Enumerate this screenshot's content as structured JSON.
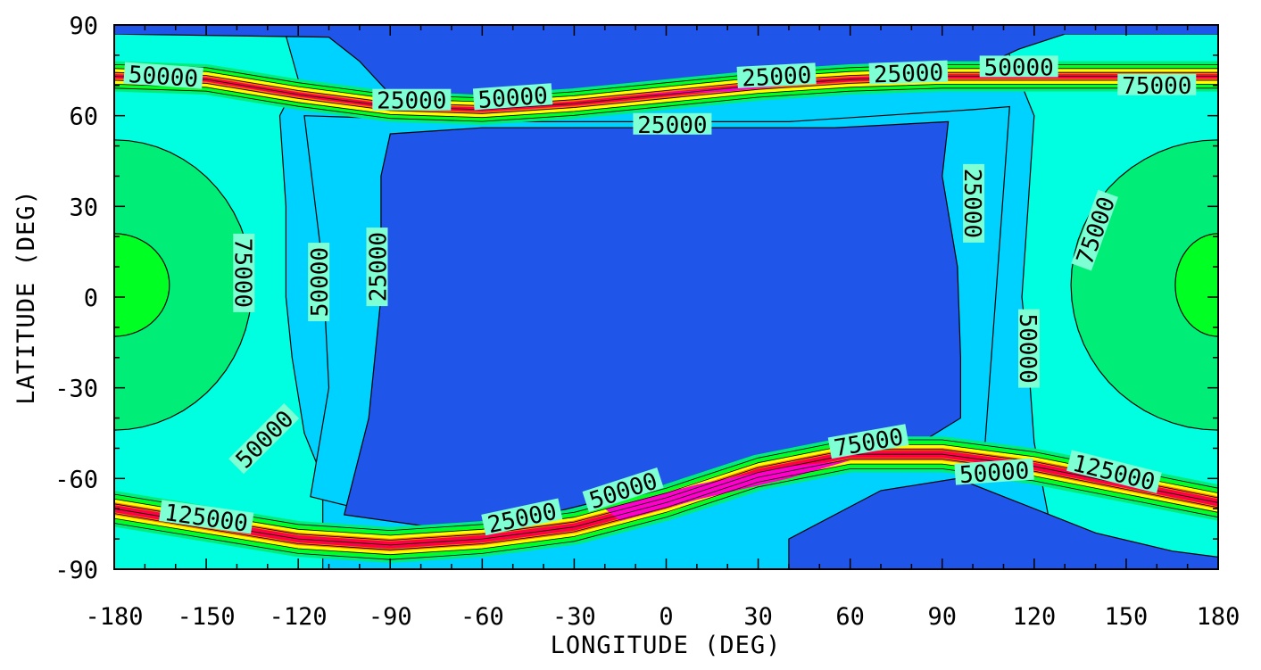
{
  "chart_data": {
    "type": "contour",
    "title": "",
    "xlabel": "LONGITUDE (DEG)",
    "ylabel": "LATITUDE (DEG)",
    "xlim": [
      -180,
      180
    ],
    "ylim": [
      -90,
      90
    ],
    "x_ticks": [
      "-180",
      "-150",
      "-120",
      "-90",
      "-60",
      "-30",
      "0",
      "30",
      "60",
      "90",
      "120",
      "150",
      "180"
    ],
    "y_ticks": [
      "90",
      "60",
      "30",
      "0",
      "-30",
      "-60",
      "-90"
    ],
    "contour_levels": [
      25000,
      50000,
      75000,
      100000,
      125000
    ],
    "fill_colors": {
      "below_25000": "#1f55e8",
      "25000_50000": "#00d2ff",
      "50000_75000": "#00ffe0",
      "75000_100000": "#00ee77",
      "100000_125000": "#00ff22",
      "high_band_1": "#ffff00",
      "high_band_2": "#ff7700",
      "high_band_3": "#ff0044",
      "high_band_4": "#ff00cc"
    },
    "contour_labels": [
      {
        "text": "50000",
        "lon": -164,
        "lat": 73,
        "angle": 4
      },
      {
        "text": "25000",
        "lon": -83,
        "lat": 65,
        "angle": 0
      },
      {
        "text": "50000",
        "lon": -50,
        "lat": 66,
        "angle": -4
      },
      {
        "text": "25000",
        "lon": 2,
        "lat": 57,
        "angle": 0
      },
      {
        "text": "25000",
        "lon": 36,
        "lat": 73,
        "angle": -3
      },
      {
        "text": "25000",
        "lon": 79,
        "lat": 74,
        "angle": -2
      },
      {
        "text": "50000",
        "lon": 115,
        "lat": 76,
        "angle": 0
      },
      {
        "text": "75000",
        "lon": 160,
        "lat": 70,
        "angle": 0
      },
      {
        "text": "75000",
        "lon": -138,
        "lat": 8,
        "angle": 90
      },
      {
        "text": "50000",
        "lon": -113,
        "lat": 5,
        "angle": -90
      },
      {
        "text": "25000",
        "lon": -94,
        "lat": 10,
        "angle": -90
      },
      {
        "text": "25000",
        "lon": 100,
        "lat": 31,
        "angle": 90
      },
      {
        "text": "75000",
        "lon": 140,
        "lat": 22,
        "angle": -70
      },
      {
        "text": "50000",
        "lon": 118,
        "lat": -17,
        "angle": 90
      },
      {
        "text": "50000",
        "lon": -131,
        "lat": -47,
        "angle": -45
      },
      {
        "text": "125000",
        "lon": -150,
        "lat": -73,
        "angle": 8
      },
      {
        "text": "25000",
        "lon": -47,
        "lat": -73,
        "angle": -12
      },
      {
        "text": "50000",
        "lon": -14,
        "lat": -64,
        "angle": -18
      },
      {
        "text": "75000",
        "lon": 66,
        "lat": -48,
        "angle": -10
      },
      {
        "text": "50000",
        "lon": 107,
        "lat": -58,
        "angle": -4
      },
      {
        "text": "125000",
        "lon": 146,
        "lat": -58,
        "angle": 14
      }
    ]
  }
}
